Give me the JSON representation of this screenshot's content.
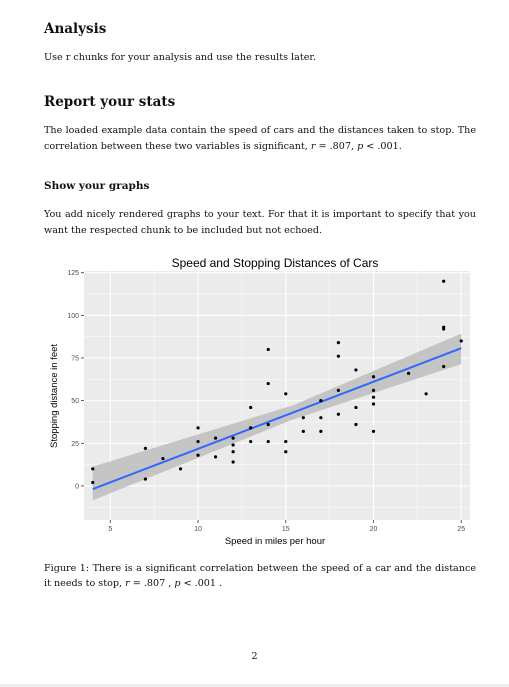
{
  "analysis": {
    "heading": "Analysis",
    "text": "Use r chunks for your analysis and use the results later."
  },
  "report": {
    "heading": "Report your stats",
    "text_a": "The loaded example data contain the speed of cars and the distances taken to stop. The correlation between these two variables is significant, ",
    "r_symbol": "r",
    "r_value": " = .807, ",
    "p_symbol": "p",
    "p_value": " < .001."
  },
  "graphs": {
    "heading": "Show your graphs",
    "text": "You add nicely rendered graphs to your text. For that it is important to specify that you want the respected chunk to be included but not echoed."
  },
  "figure": {
    "caption_a": "Figure 1: There is a significant correlation between the speed of a car and the distance it needs to stop, ",
    "r_symbol": "r",
    "r_value": " = .807 , ",
    "p_symbol": "p",
    "p_value": " < .001 ."
  },
  "page_number": "2",
  "chart_data": {
    "type": "scatter",
    "title": "Speed and Stopping Distances of Cars",
    "xlabel": "Speed in miles per hour",
    "ylabel": "Stopping distance in feet",
    "xlim": [
      3.5,
      25.5
    ],
    "ylim": [
      -20,
      126
    ],
    "x_ticks": [
      5,
      10,
      15,
      20,
      25
    ],
    "y_ticks": [
      0,
      25,
      50,
      75,
      100,
      125
    ],
    "grid": true,
    "panel_color": "#ebebeb",
    "point_color": "#000000",
    "fit_color": "#3366ff",
    "band_color": "#bdbdbd",
    "points": [
      [
        4,
        2
      ],
      [
        4,
        10
      ],
      [
        7,
        4
      ],
      [
        7,
        22
      ],
      [
        8,
        16
      ],
      [
        9,
        10
      ],
      [
        10,
        18
      ],
      [
        10,
        26
      ],
      [
        10,
        34
      ],
      [
        11,
        17
      ],
      [
        11,
        28
      ],
      [
        12,
        14
      ],
      [
        12,
        20
      ],
      [
        12,
        24
      ],
      [
        12,
        28
      ],
      [
        13,
        26
      ],
      [
        13,
        34
      ],
      [
        13,
        34
      ],
      [
        13,
        46
      ],
      [
        14,
        26
      ],
      [
        14,
        36
      ],
      [
        14,
        60
      ],
      [
        14,
        80
      ],
      [
        15,
        20
      ],
      [
        15,
        26
      ],
      [
        15,
        54
      ],
      [
        16,
        32
      ],
      [
        16,
        40
      ],
      [
        17,
        32
      ],
      [
        17,
        40
      ],
      [
        17,
        50
      ],
      [
        18,
        42
      ],
      [
        18,
        56
      ],
      [
        18,
        76
      ],
      [
        18,
        84
      ],
      [
        19,
        36
      ],
      [
        19,
        46
      ],
      [
        19,
        68
      ],
      [
        20,
        32
      ],
      [
        20,
        48
      ],
      [
        20,
        52
      ],
      [
        20,
        56
      ],
      [
        20,
        64
      ],
      [
        22,
        66
      ],
      [
        23,
        54
      ],
      [
        24,
        70
      ],
      [
        24,
        92
      ],
      [
        24,
        93
      ],
      [
        24,
        120
      ],
      [
        25,
        85
      ]
    ],
    "fit": {
      "intercept": -17.579,
      "slope": 3.932
    },
    "confidence_band": [
      {
        "x": 4,
        "lower": -8.5,
        "upper": 11.3
      },
      {
        "x": 15.4,
        "lower": 38.9,
        "upper": 47.2
      },
      {
        "x": 25,
        "lower": 71.4,
        "upper": 89.3
      }
    ]
  }
}
